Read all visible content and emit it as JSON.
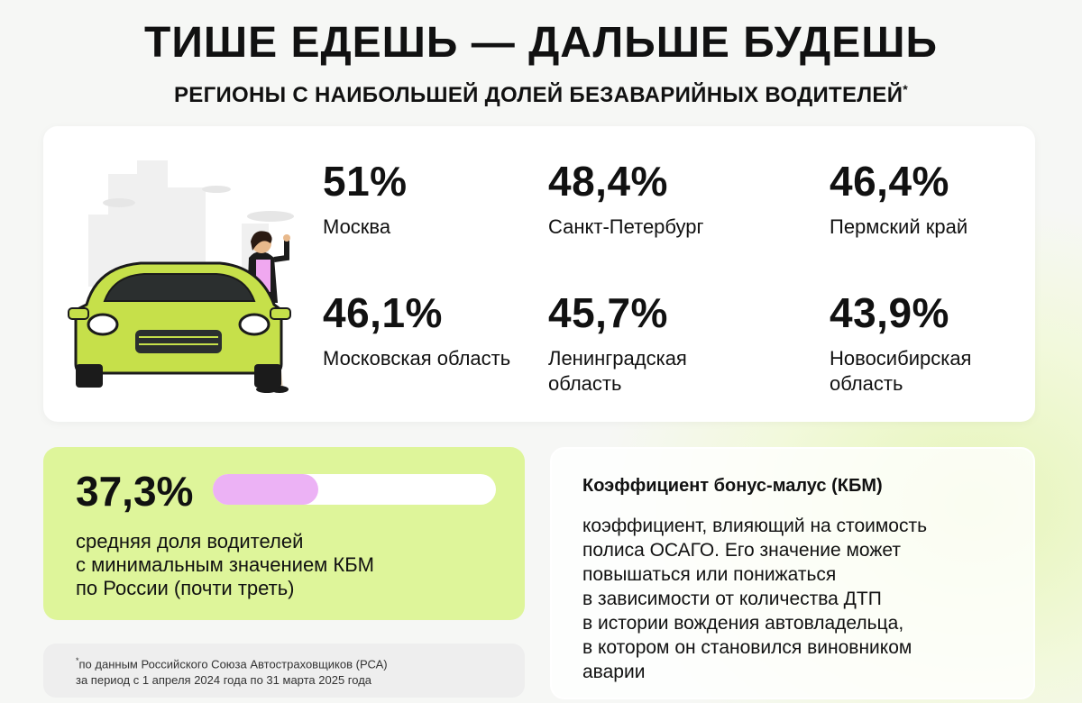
{
  "header": {
    "title": "ТИШЕ ЕДЕШЬ — ДАЛЬШЕ БУДЕШЬ",
    "subtitle": "РЕГИОНЫ С НАИБОЛЬШЕЙ ДОЛЕЙ БЕЗАВАРИЙНЫХ ВОДИТЕЛЕЙ",
    "subtitle_mark": "*"
  },
  "stats": [
    {
      "value": "51%",
      "region": "Москва"
    },
    {
      "value": "48,4%",
      "region": "Санкт-Петербург"
    },
    {
      "value": "46,4%",
      "region": "Пермский край"
    },
    {
      "value": "46,1%",
      "region": "Московская область"
    },
    {
      "value": "45,7%",
      "region": "Ленинградская область"
    },
    {
      "value": "43,9%",
      "region": "Новосибирская область"
    }
  ],
  "average": {
    "value": "37,3%",
    "share": 0.373,
    "lines": [
      "средняя доля водителей",
      "с минимальным значением КБМ",
      "по России (почти треть)"
    ]
  },
  "footnote": {
    "mark": "*",
    "line1": "по данным Российского Союза Автостраховщиков (РСА)",
    "line2": "за период с 1 апреля 2024 года по 31 марта 2025 года"
  },
  "kbm": {
    "title": "Коэффициент бонус-малус (КБМ)",
    "lines": [
      "коэффициент, влияющий на стоимость",
      "полиса ОСАГО. Его значение может",
      "повышаться или понижаться",
      "в зависимости от количества ДТП",
      "в истории вождения автовладельца,",
      "в котором он становился виновником",
      "аварии"
    ]
  },
  "colors": {
    "car": "#c6e04a",
    "bar_fill": "#ecb2f5",
    "avg_card": "#def59a"
  }
}
